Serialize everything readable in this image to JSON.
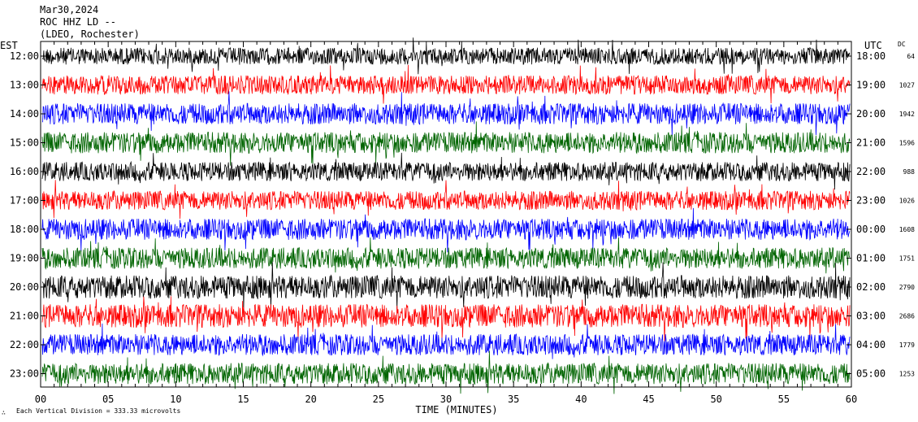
{
  "header": {
    "date": "Mar30,2024",
    "station": "ROC HHZ LD --",
    "location": "(LDEO, Rochester)"
  },
  "footer": {
    "scale_note": "Each Vertical Division = 333.33 microvolts",
    "logo_mark": "∴"
  },
  "chart_data": {
    "type": "line",
    "title": "",
    "xlabel": "TIME (MINUTES)",
    "left_axis_label": "EST",
    "right_axis_label": "UTC",
    "dc_label": "DC",
    "xlim": [
      0,
      60
    ],
    "x_ticks": [
      "00",
      "05",
      "10",
      "15",
      "20",
      "25",
      "30",
      "35",
      "40",
      "45",
      "50",
      "55",
      "60"
    ],
    "trace_color_cycle": [
      "#000000",
      "#ff0000",
      "#0000ff",
      "#006400"
    ],
    "rows": [
      {
        "est": "12:00",
        "utc": "18:00",
        "dc": "64",
        "amp": 0.8
      },
      {
        "est": "13:00",
        "utc": "19:00",
        "dc": "1027",
        "amp": 0.9
      },
      {
        "est": "14:00",
        "utc": "20:00",
        "dc": "1942",
        "amp": 1.0
      },
      {
        "est": "15:00",
        "utc": "21:00",
        "dc": "1596",
        "amp": 1.0
      },
      {
        "est": "16:00",
        "utc": "22:00",
        "dc": "988",
        "amp": 0.9
      },
      {
        "est": "17:00",
        "utc": "23:00",
        "dc": "1026",
        "amp": 0.9
      },
      {
        "est": "18:00",
        "utc": "00:00",
        "dc": "1608",
        "amp": 1.0
      },
      {
        "est": "19:00",
        "utc": "01:00",
        "dc": "1751",
        "amp": 1.0
      },
      {
        "est": "20:00",
        "utc": "02:00",
        "dc": "2790",
        "amp": 1.1
      },
      {
        "est": "21:00",
        "utc": "03:00",
        "dc": "2686",
        "amp": 1.1
      },
      {
        "est": "22:00",
        "utc": "04:00",
        "dc": "1779",
        "amp": 1.0
      },
      {
        "est": "23:00",
        "utc": "05:00",
        "dc": "1253",
        "amp": 1.0
      }
    ]
  }
}
